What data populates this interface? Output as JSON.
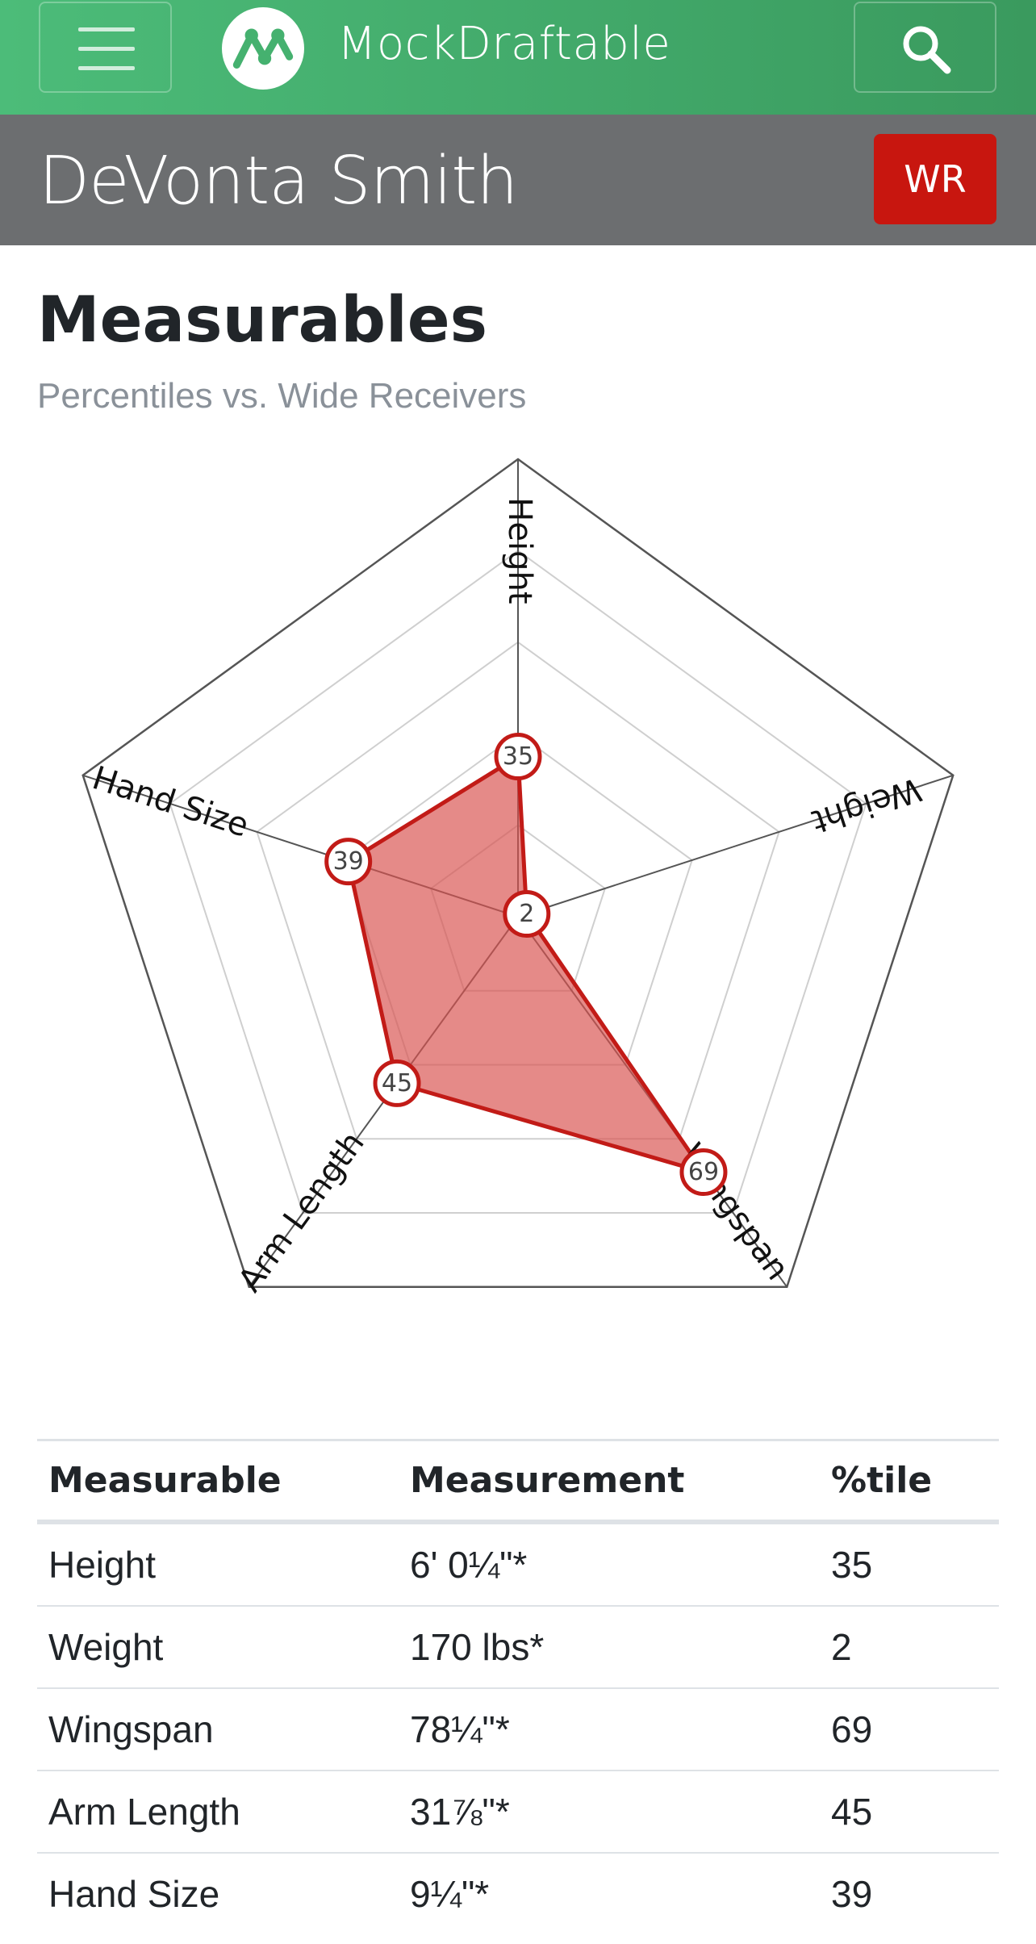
{
  "nav": {
    "brand": "MockDraftable",
    "menu_icon": "hamburger-icon",
    "search_icon": "search-icon",
    "logo_icon": "mockdraftable-logo-icon"
  },
  "player": {
    "name": "DeVonta Smith",
    "position": "WR",
    "position_color": "#c8160f"
  },
  "section": {
    "title": "Measurables",
    "subtitle": "Percentiles vs. Wide Receivers"
  },
  "chart_data": {
    "type": "radar",
    "axes": [
      "Height",
      "Weight",
      "Wingspan",
      "Arm Length",
      "Hand Size"
    ],
    "values": [
      35,
      2,
      69,
      45,
      39
    ],
    "range": [
      0,
      100
    ],
    "rings": 5,
    "fill_color": "#d9534f",
    "stroke_color": "#c21b17"
  },
  "table": {
    "headers": [
      "Measurable",
      "Measurement",
      "%tile"
    ],
    "rows": [
      [
        "Height",
        "6' 0¼\"*",
        "35"
      ],
      [
        "Weight",
        "170 lbs*",
        "2"
      ],
      [
        "Wingspan",
        "78¼\"*",
        "69"
      ],
      [
        "Arm Length",
        "31⅞\"*",
        "45"
      ],
      [
        "Hand Size",
        "9¼\"*",
        "39"
      ]
    ]
  }
}
